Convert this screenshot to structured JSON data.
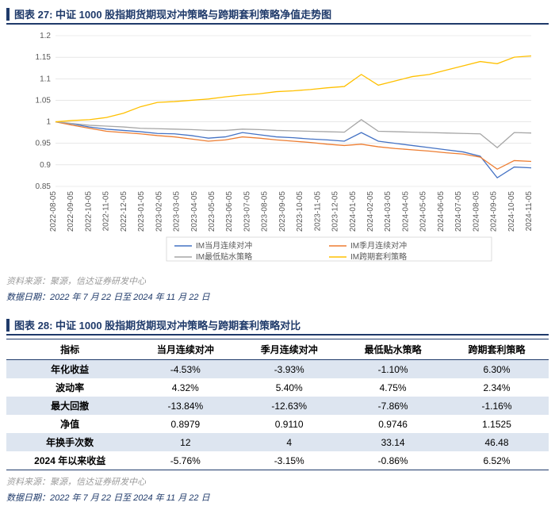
{
  "fig27": {
    "title": "图表 27:  中证 1000 股指期货期现对冲策略与跨期套利策略净值走势图",
    "source": "资料来源：聚源，信达证券研发中心",
    "date_range": "数据日期：2022 年 7 月 22 日至 2024 年 11 月 22 日",
    "chart": {
      "type": "line",
      "ylim": [
        0.85,
        1.2
      ],
      "ytick_step": 0.05,
      "yticks": [
        0.85,
        0.9,
        0.95,
        1,
        1.05,
        1.1,
        1.15,
        1.2
      ],
      "xticks": [
        "2022-08-05",
        "2022-09-05",
        "2022-10-05",
        "2022-11-05",
        "2022-12-05",
        "2023-01-05",
        "2023-02-05",
        "2023-03-05",
        "2023-04-05",
        "2023-05-05",
        "2023-06-05",
        "2023-07-05",
        "2023-08-05",
        "2023-09-05",
        "2023-10-05",
        "2023-11-05",
        "2023-12-05",
        "2024-01-05",
        "2024-02-05",
        "2024-03-05",
        "2024-04-05",
        "2024-05-05",
        "2024-06-05",
        "2024-07-05",
        "2024-08-05",
        "2024-09-05",
        "2024-10-05",
        "2024-11-05"
      ],
      "grid_color": "#d9d9d9",
      "background_color": "#ffffff",
      "axis_label_color": "#595959",
      "axis_label_fontsize": 10,
      "line_width": 1.3,
      "series": [
        {
          "name": "IM当月连续对冲",
          "color": "#4472c4",
          "data": [
            1.0,
            0.995,
            0.988,
            0.983,
            0.98,
            0.977,
            0.973,
            0.972,
            0.968,
            0.962,
            0.965,
            0.975,
            0.97,
            0.965,
            0.963,
            0.96,
            0.958,
            0.955,
            0.975,
            0.955,
            0.95,
            0.945,
            0.94,
            0.935,
            0.93,
            0.92,
            0.87,
            0.895,
            0.893
          ]
        },
        {
          "name": "IM季月连续对冲",
          "color": "#ed7d31",
          "data": [
            1.0,
            0.992,
            0.985,
            0.978,
            0.975,
            0.972,
            0.968,
            0.965,
            0.96,
            0.955,
            0.958,
            0.965,
            0.962,
            0.958,
            0.955,
            0.952,
            0.948,
            0.945,
            0.948,
            0.942,
            0.938,
            0.935,
            0.932,
            0.928,
            0.925,
            0.918,
            0.89,
            0.91,
            0.908
          ]
        },
        {
          "name": "IM最低贴水策略",
          "color": "#a6a6a6",
          "data": [
            1.0,
            0.996,
            0.992,
            0.99,
            0.988,
            0.985,
            0.984,
            0.983,
            0.982,
            0.98,
            0.98,
            0.983,
            0.982,
            0.98,
            0.979,
            0.978,
            0.977,
            0.976,
            1.005,
            0.978,
            0.977,
            0.976,
            0.975,
            0.974,
            0.973,
            0.972,
            0.94,
            0.975,
            0.974
          ]
        },
        {
          "name": "IM跨期套利策略",
          "color": "#ffc000",
          "data": [
            1.0,
            1.003,
            1.005,
            1.01,
            1.02,
            1.035,
            1.045,
            1.047,
            1.05,
            1.053,
            1.058,
            1.062,
            1.065,
            1.07,
            1.072,
            1.075,
            1.079,
            1.082,
            1.11,
            1.085,
            1.095,
            1.105,
            1.11,
            1.12,
            1.13,
            1.14,
            1.135,
            1.15,
            1.153
          ]
        }
      ]
    }
  },
  "fig28": {
    "title": "图表 28:  中证 1000 股指期货期现对冲策略与跨期套利策略对比",
    "source": "资料来源：聚源，信达证券研发中心",
    "date_range": "数据日期：2022 年 7 月 22 日至 2024 年 11 月 22 日",
    "table": {
      "band_color": "#dde5f0",
      "border_color": "#1f3a6a",
      "fontsize": 12,
      "columns": [
        "指标",
        "当月连续对冲",
        "季月连续对冲",
        "最低贴水策略",
        "跨期套利策略"
      ],
      "rows": [
        {
          "metric": "年化收益",
          "cells": [
            "-4.53%",
            "-3.93%",
            "-1.10%",
            "6.30%"
          ],
          "band": true
        },
        {
          "metric": "波动率",
          "cells": [
            "4.32%",
            "5.40%",
            "4.75%",
            "2.34%"
          ],
          "band": false
        },
        {
          "metric": "最大回撤",
          "cells": [
            "-13.84%",
            "-12.63%",
            "-7.86%",
            "-1.16%"
          ],
          "band": true
        },
        {
          "metric": "净值",
          "cells": [
            "0.8979",
            "0.9110",
            "0.9746",
            "1.1525"
          ],
          "band": false
        },
        {
          "metric": "年换手次数",
          "cells": [
            "12",
            "4",
            "33.14",
            "46.48"
          ],
          "band": true
        },
        {
          "metric": "2024 年以来收益",
          "cells": [
            "-5.76%",
            "-3.15%",
            "-0.86%",
            "6.52%"
          ],
          "band": false
        }
      ]
    }
  }
}
